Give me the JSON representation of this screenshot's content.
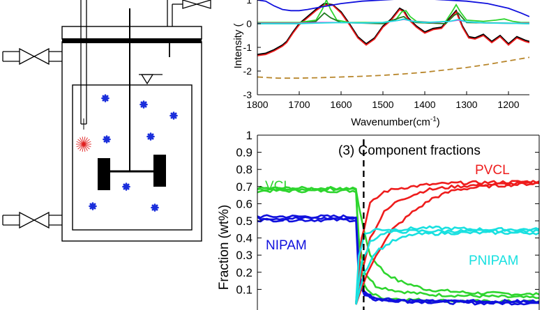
{
  "colors": {
    "red": "#ee1c1c",
    "green": "#2ed52e",
    "darkgreen": "#1f7a1f",
    "blue": "#1010dd",
    "cyan": "#19e0e0",
    "magenta": "#e040e0",
    "brown": "#b8862b",
    "black": "#000000",
    "particle": "#1a2edb"
  },
  "reactor": {
    "icons": [
      "valve-icon",
      "stirrer-icon",
      "probe-icon",
      "liquid-level-icon",
      "monomer-particle-icon"
    ]
  },
  "spectrum_panel": {
    "xlabel_main": "Wavenumber(cm",
    "xlabel_sup": "-1",
    "xlabel_end": ")",
    "ylabel": "Intensity (",
    "x_ticks": [
      "1800",
      "1700",
      "1600",
      "1500",
      "1400",
      "1300",
      "1200"
    ],
    "y_ticks": [
      "1",
      "0",
      "-1",
      "-2",
      "-3"
    ]
  },
  "fraction_panel": {
    "annotation": "(3) Component fractions",
    "ylabel": "Fraction (wt%)",
    "y_ticks": [
      "1",
      "0.9",
      "0.8",
      "0.7",
      "0.6",
      "0.5",
      "0.4",
      "0.3",
      "0.2",
      "0.1"
    ],
    "labels": {
      "vcl": "VCL",
      "nipam": "NIPAM",
      "pvcl": "PVCL",
      "pnipam": "PNIPAM"
    }
  },
  "chart_data": [
    {
      "type": "line",
      "ylabel": "Intensity (",
      "xlabel": "Wavenumber(cm-1)",
      "xlim": [
        1800,
        1150
      ],
      "ylim": [
        -3,
        1
      ],
      "series": [
        {
          "color": "black",
          "x": [
            1800,
            1780,
            1760,
            1740,
            1730,
            1715,
            1700,
            1680,
            1660,
            1640,
            1620,
            1600,
            1580,
            1560,
            1540,
            1520,
            1500,
            1480,
            1460,
            1450,
            1440,
            1420,
            1400,
            1380,
            1360,
            1340,
            1325,
            1310,
            1295,
            1280,
            1260,
            1240,
            1220,
            1200,
            1180,
            1160,
            1150
          ],
          "y": [
            -1.3,
            -1.25,
            -1.1,
            -0.9,
            -0.75,
            -0.35,
            0.0,
            0.3,
            0.6,
            0.85,
            0.8,
            0.5,
            0.0,
            -0.55,
            -0.85,
            -0.6,
            -0.1,
            0.2,
            0.65,
            0.55,
            0.25,
            -0.1,
            -0.35,
            -0.2,
            -0.15,
            0.25,
            0.55,
            -0.1,
            -0.55,
            -0.6,
            -0.45,
            -0.75,
            -0.5,
            -0.85,
            -0.55,
            -0.7,
            -0.75
          ]
        },
        {
          "color": "red",
          "x": [
            1800,
            1780,
            1760,
            1740,
            1730,
            1715,
            1700,
            1680,
            1660,
            1640,
            1620,
            1600,
            1580,
            1560,
            1540,
            1520,
            1500,
            1480,
            1460,
            1450,
            1440,
            1420,
            1400,
            1380,
            1360,
            1340,
            1325,
            1310,
            1295,
            1280,
            1260,
            1240,
            1220,
            1200,
            1180,
            1160,
            1150
          ],
          "y": [
            -1.35,
            -1.3,
            -1.15,
            -0.95,
            -0.8,
            -0.4,
            -0.05,
            0.25,
            0.55,
            0.8,
            0.78,
            0.45,
            -0.05,
            -0.6,
            -0.9,
            -0.65,
            -0.15,
            0.15,
            0.6,
            0.5,
            0.2,
            -0.15,
            -0.4,
            -0.25,
            -0.2,
            0.2,
            0.5,
            -0.15,
            -0.6,
            -0.65,
            -0.5,
            -0.8,
            -0.55,
            -0.9,
            -0.6,
            -0.75,
            -0.8
          ]
        },
        {
          "color": "green",
          "x": [
            1800,
            1700,
            1660,
            1645,
            1635,
            1625,
            1610,
            1580,
            1500,
            1470,
            1455,
            1445,
            1435,
            1420,
            1380,
            1350,
            1335,
            1325,
            1315,
            1300,
            1260,
            1230,
            1210,
            1190,
            1170,
            1150
          ],
          "y": [
            0.05,
            0.05,
            0.15,
            0.6,
            1.0,
            0.6,
            0.15,
            0.05,
            0.05,
            0.15,
            0.5,
            0.55,
            0.3,
            0.1,
            0.05,
            0.1,
            0.5,
            0.8,
            0.5,
            0.15,
            0.1,
            0.15,
            0.2,
            0.1,
            0.05,
            0.05
          ]
        },
        {
          "color": "darkgreen",
          "x": [
            1800,
            1700,
            1660,
            1640,
            1625,
            1600,
            1500,
            1460,
            1450,
            1440,
            1420,
            1350,
            1330,
            1320,
            1300,
            1200,
            1150
          ],
          "y": [
            0.0,
            0.0,
            0.1,
            0.45,
            0.25,
            0.05,
            0.0,
            0.25,
            0.3,
            0.15,
            0.05,
            0.0,
            0.35,
            0.45,
            0.05,
            0.02,
            0.0
          ]
        },
        {
          "color": "blue",
          "x": [
            1800,
            1780,
            1760,
            1740,
            1720,
            1700,
            1680,
            1650,
            1600,
            1550,
            1500,
            1450,
            1400,
            1350,
            1300,
            1250,
            1200,
            1170,
            1150
          ],
          "y": [
            1.0,
            0.95,
            0.75,
            0.6,
            0.55,
            0.55,
            0.6,
            0.7,
            0.85,
            0.95,
            1.0,
            1.05,
            1.05,
            1.0,
            0.95,
            0.85,
            0.65,
            0.45,
            0.3
          ]
        },
        {
          "color": "magenta",
          "x": [
            1800,
            1700,
            1650,
            1600,
            1550,
            1500,
            1470,
            1450,
            1420,
            1380,
            1340,
            1320,
            1300,
            1250,
            1200,
            1150
          ],
          "y": [
            0.02,
            0.02,
            0.05,
            0.05,
            0.03,
            0.05,
            0.12,
            0.18,
            0.08,
            0.05,
            0.1,
            0.15,
            0.08,
            0.03,
            0.02,
            0.02
          ]
        },
        {
          "color": "cyan",
          "x": [
            1800,
            1700,
            1650,
            1600,
            1550,
            1500,
            1460,
            1450,
            1430,
            1400,
            1340,
            1320,
            1300,
            1250,
            1200,
            1150
          ],
          "y": [
            0.0,
            0.0,
            0.03,
            0.05,
            0.03,
            0.05,
            0.15,
            0.2,
            0.1,
            0.05,
            0.1,
            0.18,
            0.08,
            0.03,
            0.02,
            0.0
          ]
        },
        {
          "color": "brown",
          "dashed": true,
          "x": [
            1800,
            1750,
            1700,
            1650,
            1600,
            1550,
            1500,
            1450,
            1400,
            1350,
            1300,
            1250,
            1200,
            1150
          ],
          "y": [
            -2.25,
            -2.3,
            -2.3,
            -2.28,
            -2.25,
            -2.22,
            -2.18,
            -2.12,
            -2.05,
            -1.95,
            -1.85,
            -1.72,
            -1.57,
            -1.42
          ]
        }
      ]
    },
    {
      "type": "line",
      "title": "(3) Component fractions",
      "ylabel": "Fraction (wt%)",
      "ylim": [
        0,
        1
      ],
      "xlim": [
        0,
        1
      ],
      "switch_x": 0.35,
      "series": [
        {
          "name": "VCL",
          "color": "green",
          "x": [
            0.0,
            0.35,
            0.37,
            0.4,
            0.45,
            0.5,
            0.6,
            0.75,
            1.0
          ],
          "y": [
            0.685,
            0.685,
            0.5,
            0.3,
            0.2,
            0.15,
            0.1,
            0.08,
            0.07
          ]
        },
        {
          "name": "VCL",
          "color": "green",
          "x": [
            0.0,
            0.35,
            0.36,
            0.38,
            0.42,
            0.5,
            0.6,
            0.8,
            1.0
          ],
          "y": [
            0.675,
            0.675,
            0.4,
            0.2,
            0.12,
            0.09,
            0.07,
            0.06,
            0.05
          ]
        },
        {
          "name": "VCL",
          "color": "green",
          "x": [
            0.0,
            0.35,
            0.36,
            0.38,
            0.41,
            0.45,
            0.55,
            0.75,
            1.0
          ],
          "y": [
            0.69,
            0.69,
            0.3,
            0.12,
            0.07,
            0.05,
            0.04,
            0.03,
            0.03
          ]
        },
        {
          "name": "NIPAM",
          "color": "blue",
          "x": [
            0.0,
            0.35,
            0.36,
            0.37,
            0.4,
            0.45,
            0.55,
            0.75,
            1.0
          ],
          "y": [
            0.525,
            0.525,
            0.25,
            0.1,
            0.06,
            0.04,
            0.03,
            0.02,
            0.02
          ]
        },
        {
          "name": "NIPAM",
          "color": "blue",
          "x": [
            0.0,
            0.35,
            0.36,
            0.38,
            0.42,
            0.5,
            0.6,
            1.0
          ],
          "y": [
            0.515,
            0.515,
            0.2,
            0.08,
            0.05,
            0.04,
            0.03,
            0.03
          ]
        },
        {
          "name": "NIPAM",
          "color": "blue",
          "x": [
            0.0,
            0.35,
            0.36,
            0.38,
            0.42,
            0.5,
            1.0
          ],
          "y": [
            0.505,
            0.505,
            0.15,
            0.06,
            0.04,
            0.03,
            0.03
          ]
        },
        {
          "name": "PVCL",
          "color": "red",
          "x": [
            0.35,
            0.37,
            0.4,
            0.45,
            0.5,
            0.6,
            0.7,
            0.85,
            1.0
          ],
          "y": [
            0.02,
            0.4,
            0.6,
            0.67,
            0.69,
            0.71,
            0.72,
            0.725,
            0.73
          ]
        },
        {
          "name": "PVCL",
          "color": "red",
          "x": [
            0.35,
            0.37,
            0.4,
            0.45,
            0.5,
            0.6,
            0.7,
            0.8,
            1.0
          ],
          "y": [
            0.02,
            0.2,
            0.4,
            0.55,
            0.62,
            0.68,
            0.7,
            0.71,
            0.72
          ]
        },
        {
          "name": "PVCL",
          "color": "red",
          "x": [
            0.35,
            0.38,
            0.42,
            0.48,
            0.55,
            0.62,
            0.7,
            0.8,
            1.0
          ],
          "y": [
            0.02,
            0.15,
            0.3,
            0.45,
            0.55,
            0.63,
            0.68,
            0.7,
            0.72
          ]
        },
        {
          "name": "PNIPAM",
          "color": "cyan",
          "x": [
            0.35,
            0.36,
            0.38,
            0.42,
            0.5,
            0.6,
            0.8,
            1.0
          ],
          "y": [
            0.02,
            0.3,
            0.42,
            0.45,
            0.45,
            0.46,
            0.45,
            0.45
          ]
        },
        {
          "name": "PNIPAM",
          "color": "cyan",
          "x": [
            0.35,
            0.37,
            0.4,
            0.45,
            0.55,
            0.7,
            1.0
          ],
          "y": [
            0.02,
            0.25,
            0.38,
            0.43,
            0.44,
            0.44,
            0.44
          ]
        },
        {
          "name": "PNIPAM",
          "color": "cyan",
          "x": [
            0.35,
            0.38,
            0.42,
            0.48,
            0.55,
            0.7,
            1.0
          ],
          "y": [
            0.02,
            0.2,
            0.32,
            0.38,
            0.42,
            0.43,
            0.43
          ]
        }
      ]
    }
  ]
}
